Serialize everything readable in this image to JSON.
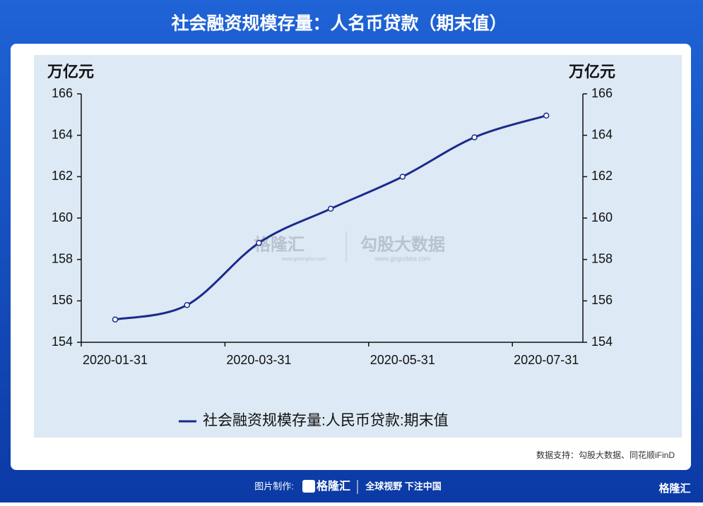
{
  "header": {
    "title": "社会融资规模存量：人名币贷款（期末值）"
  },
  "chart_data": {
    "type": "line",
    "y_unit": "万亿元",
    "y2_unit": "万亿元",
    "categories": [
      "2020-01-31",
      null,
      "2020-03-31",
      null,
      "2020-05-31",
      null,
      "2020-07-31"
    ],
    "series": [
      {
        "name": "社会融资规模存量:人民币贷款:期末值",
        "color": "#1a2a8c",
        "values": [
          155.1,
          155.8,
          158.8,
          160.45,
          162.0,
          163.9,
          164.95
        ]
      }
    ],
    "ylim": [
      154,
      166
    ],
    "yticks": [
      154,
      156,
      158,
      160,
      162,
      164,
      166
    ],
    "y2lim": [
      154,
      166
    ],
    "y2ticks": [
      154,
      156,
      158,
      160,
      162,
      164,
      166
    ],
    "legend": "bottom"
  },
  "watermark": {
    "left": "格隆汇",
    "left_url": "www.gelonghui.com",
    "right": "勾股大数据",
    "right_url": "www.gogudata.com"
  },
  "source": "数据支持：勾股大数据、同花顺iFinD",
  "footer": {
    "made_by": "图片制作:",
    "brand": "格隆汇",
    "slogan": "全球视野 下注中国",
    "corner": "格隆汇"
  }
}
